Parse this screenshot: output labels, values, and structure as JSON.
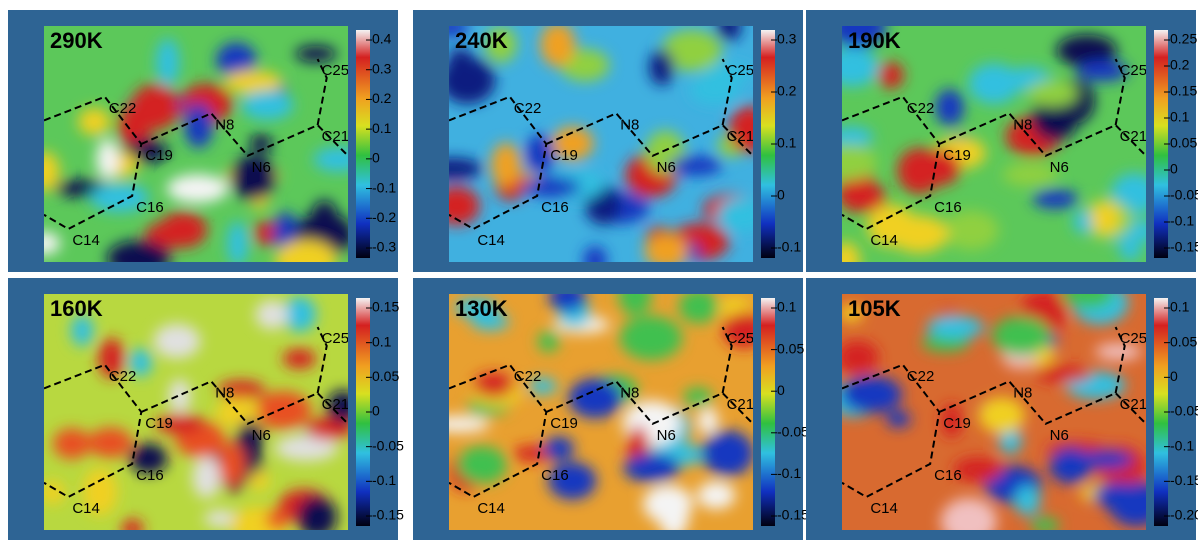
{
  "panels": [
    {
      "label": "290K",
      "scale": [
        "0.4",
        "0.3",
        "0.2",
        "0.1",
        "0",
        "-0.1",
        "-0.2",
        "-0.3"
      ],
      "atoms": [
        "C22",
        "N8",
        "C25",
        "C21",
        "C19",
        "N6",
        "C16",
        "C14"
      ]
    },
    {
      "label": "240K",
      "scale": [
        "0.3",
        "0.2",
        "0.1",
        "0",
        "-0.1"
      ],
      "atoms": [
        "C22",
        "N8",
        "C25",
        "C21",
        "C19",
        "N6",
        "C16",
        "C14"
      ]
    },
    {
      "label": "190K",
      "scale": [
        "0.25",
        "0.2",
        "0.15",
        "0.1",
        "0.05",
        "0",
        "-0.05",
        "-0.1",
        "-0.15"
      ],
      "atoms": [
        "C22",
        "N8",
        "C25",
        "C21",
        "C19",
        "N6",
        "C16",
        "C14"
      ]
    },
    {
      "label": "160K",
      "scale": [
        "0.15",
        "0.1",
        "0.05",
        "0",
        "-0.05",
        "-0.1",
        "-0.15"
      ],
      "atoms": [
        "C22",
        "N8",
        "C25",
        "C21",
        "C19",
        "N6",
        "C16",
        "C14"
      ]
    },
    {
      "label": "130K",
      "scale": [
        "0.1",
        "0.05",
        "0",
        "-0.05",
        "-0.1",
        "-0.15"
      ],
      "atoms": [
        "C22",
        "N8",
        "C25",
        "C21",
        "C19",
        "N6",
        "C16",
        "C14"
      ]
    },
    {
      "label": "105K",
      "scale": [
        "0.1",
        "0.05",
        "0",
        "-0.05",
        "-0.1",
        "-0.15",
        "-0.20"
      ],
      "atoms": [
        "C22",
        "N8",
        "C25",
        "C21",
        "C19",
        "N6",
        "C16",
        "C14"
      ]
    }
  ]
}
